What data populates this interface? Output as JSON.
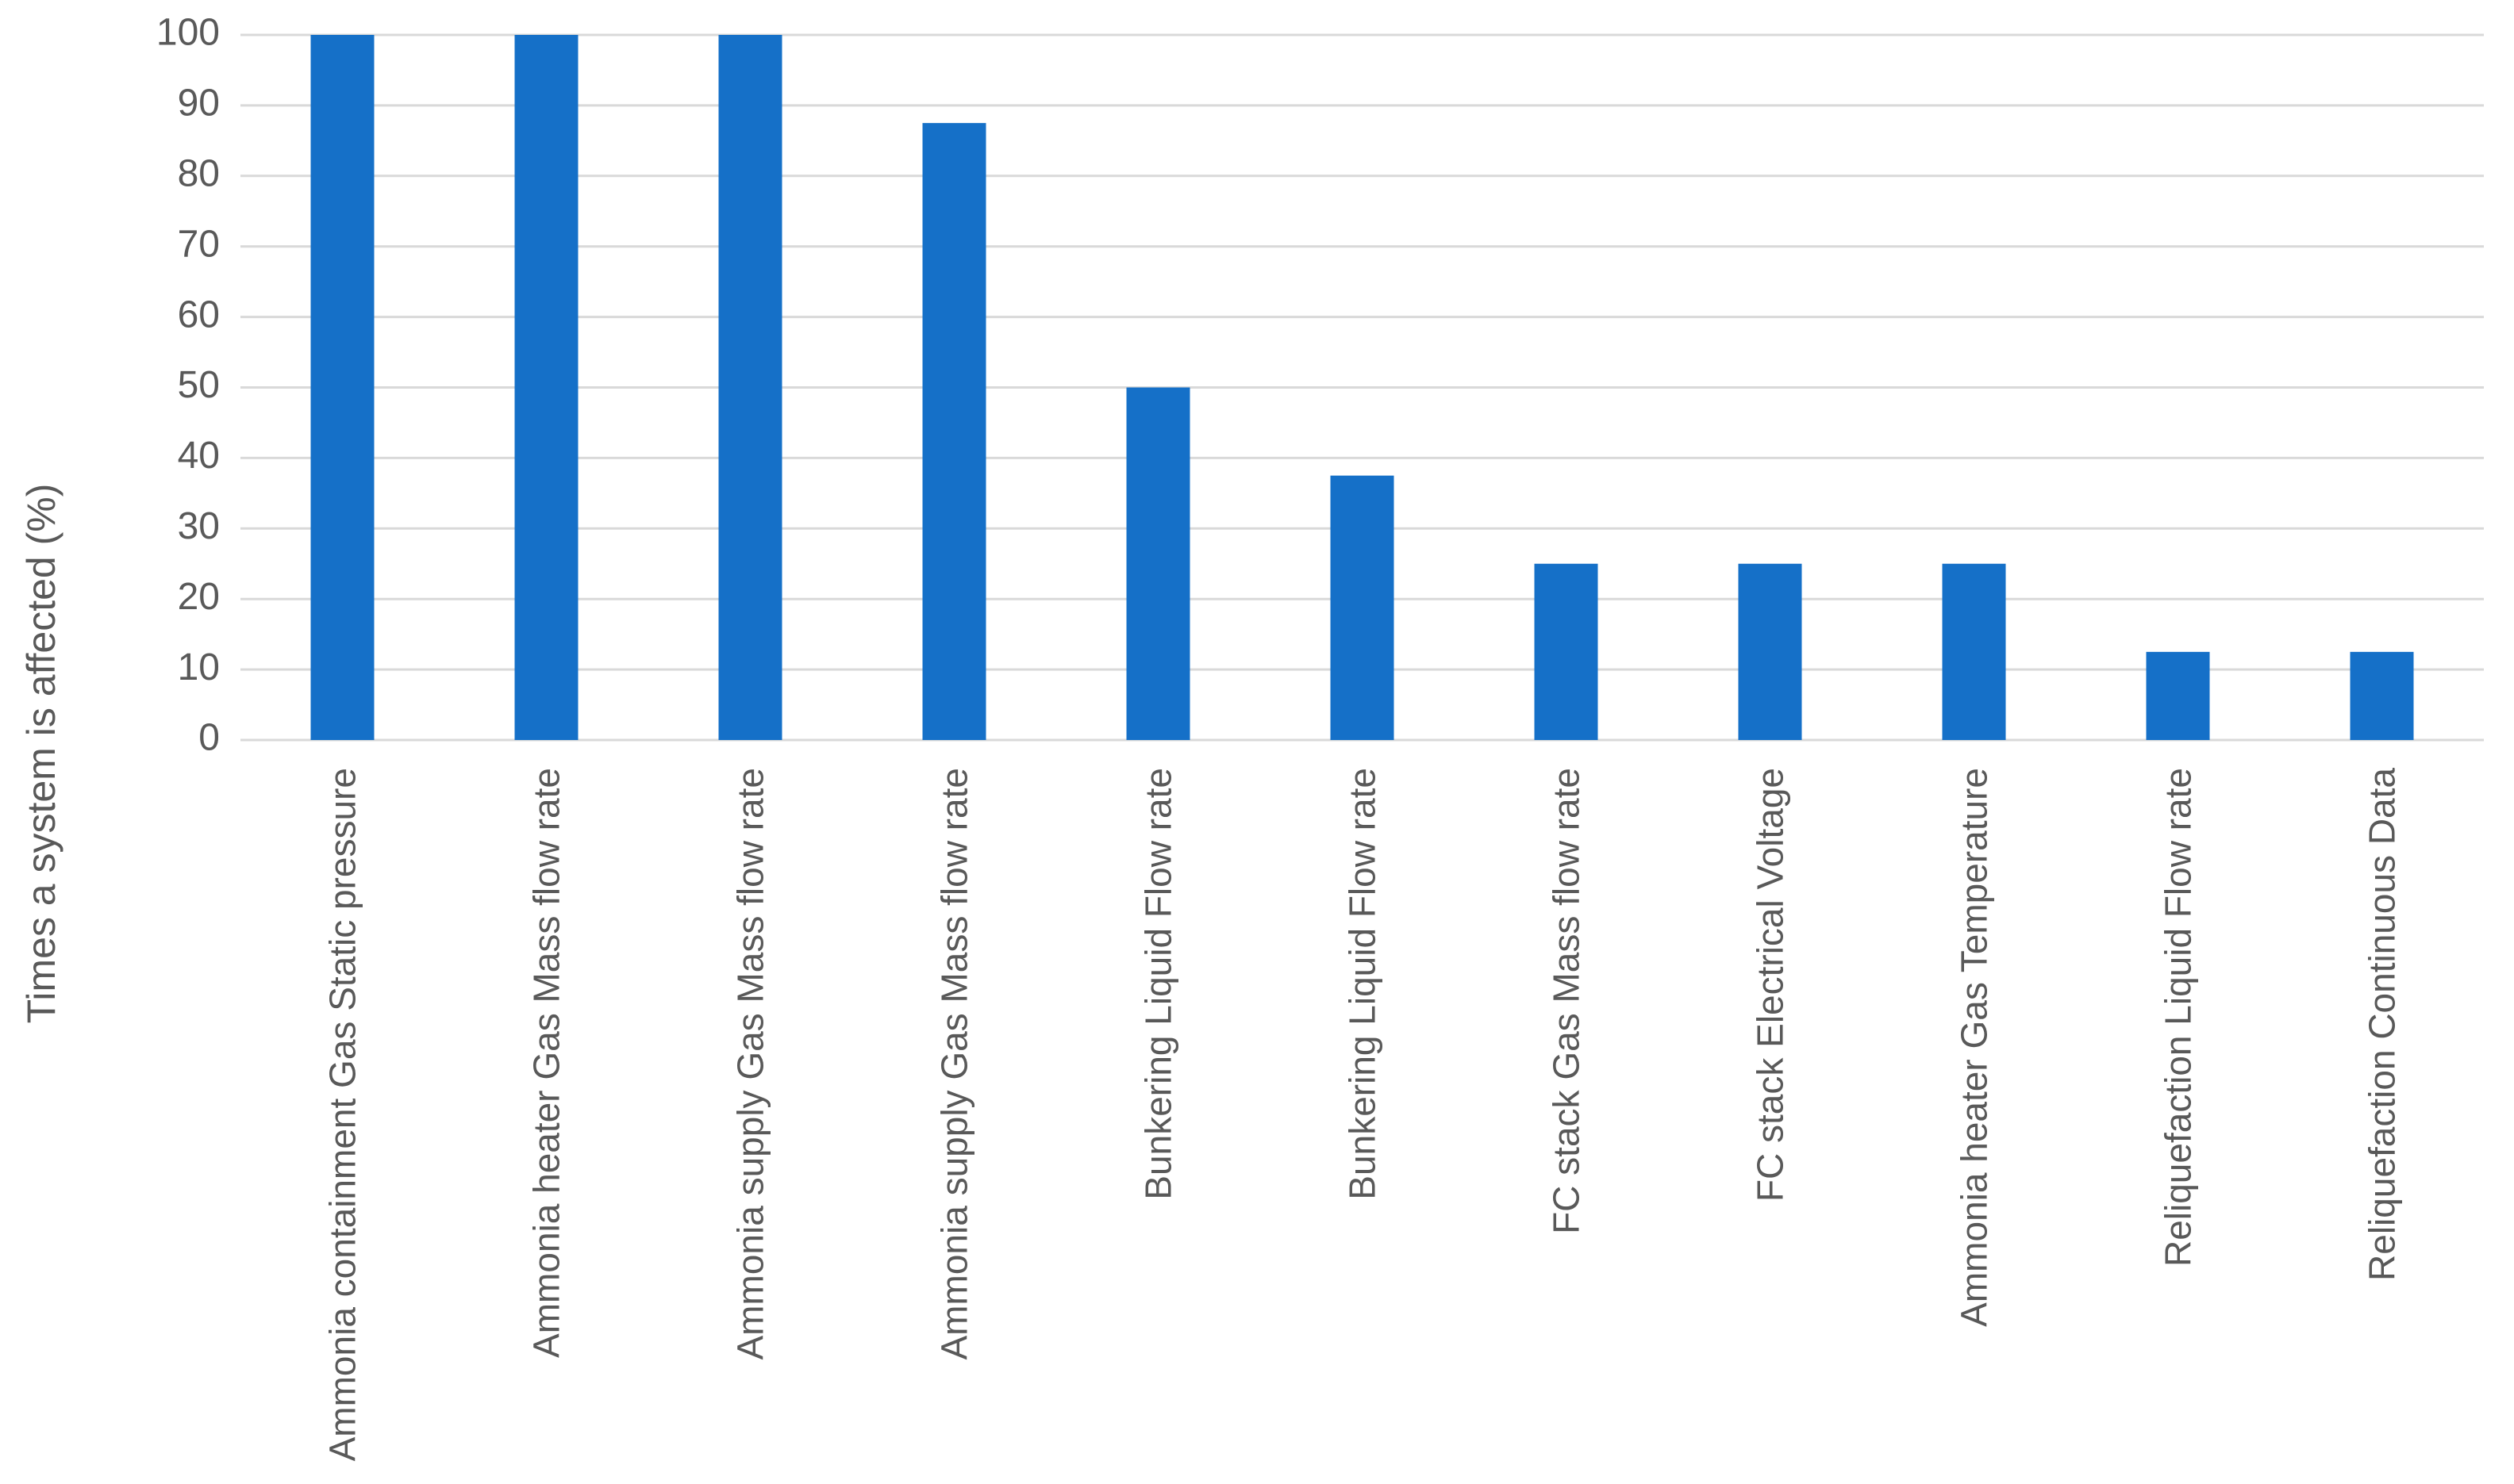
{
  "chart_data": {
    "type": "bar",
    "y_label": "Times a system is affected (%)",
    "categories": [
      "Ammonia containment  Gas Static pressure",
      "Ammonia heater  Gas Mass flow rate",
      "Ammonia supply  Gas Mass flow rate",
      "Ammonia supply  Gas Mass flow rate",
      "Bunkering  Liquid Flow rate",
      "Bunkering  Liquid Flow rate",
      "FC stack  Gas Mass flow rate",
      "FC stack  Electrical Voltage",
      "Ammonia heater  Gas Temperature",
      "Reliquefaction  Liquid Flow rate",
      "Reliquefaction  Continuous Data"
    ],
    "values": [
      100,
      100,
      100,
      87.5,
      50,
      37.5,
      25,
      25,
      25,
      12.5,
      12.5
    ],
    "color": "#1570c8",
    "ylim": [
      0,
      100
    ],
    "yticks": [
      0,
      10,
      20,
      30,
      40,
      50,
      60,
      70,
      80,
      90,
      100
    ],
    "grid": true
  }
}
